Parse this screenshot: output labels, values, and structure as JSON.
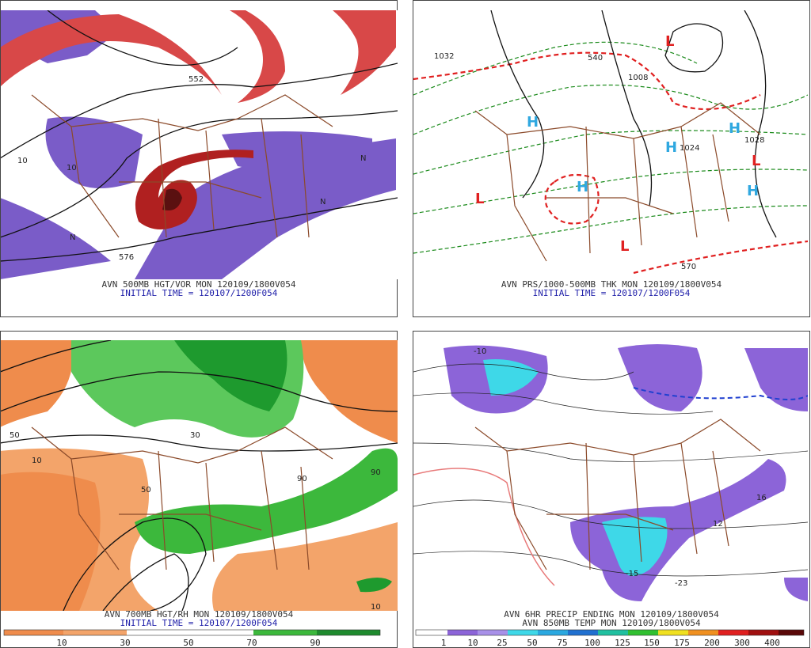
{
  "panels": [
    {
      "caption": "AVN 500MB HGT/VOR MON 120109/1800V054",
      "subcaption": "INITIAL TIME = 120107/1200F054",
      "map_labels": [
        "10",
        "576",
        "552",
        "10",
        "N",
        "N",
        "N"
      ]
    },
    {
      "caption": "AVN PRS/1000-500MB THK MON 120109/1800V054",
      "subcaption": "INITIAL TIME = 120107/1200F054",
      "map_labels": [
        "H",
        "H",
        "H",
        "H",
        "H",
        "L",
        "L",
        "L",
        "L",
        "1032",
        "1024",
        "1028",
        "1008",
        "570",
        "540"
      ]
    },
    {
      "caption": "AVN 700MB HGT/RH MON 120109/1800V054",
      "subcaption": "INITIAL TIME = 120107/1200F054",
      "colorbar": [
        "10",
        "30",
        "50",
        "70",
        "90"
      ],
      "map_labels": [
        "50",
        "10",
        "50",
        "30",
        "90",
        "90",
        "10"
      ]
    },
    {
      "caption": "AVN 6HR PRECIP ENDING MON 120109/1800V054",
      "subcaption": "AVN 850MB TEMP MON 120109/1800V054",
      "colorbar": [
        "1",
        "10",
        "25",
        "50",
        "75",
        "100",
        "125",
        "150",
        "175",
        "200",
        "300",
        "400"
      ],
      "map_labels": [
        "-10",
        "16",
        "12",
        "-15",
        "-23"
      ]
    }
  ]
}
